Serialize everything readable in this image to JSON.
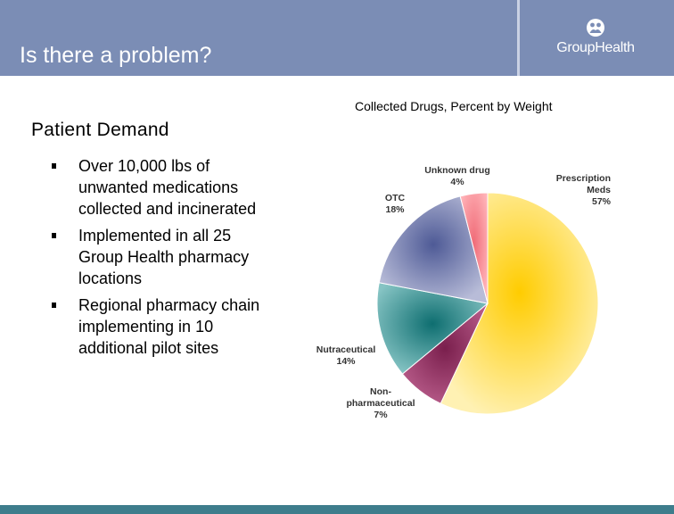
{
  "header": {
    "title": "Is there a problem?",
    "logo_text": "GroupHealth"
  },
  "content": {
    "heading": "Patient Demand",
    "bullets": [
      "Over 10,000 lbs of unwanted medications collected and incinerated",
      "Implemented in all 25 Group Health pharmacy locations",
      "Regional pharmacy chain implementing in 10 additional pilot sites"
    ]
  },
  "colors": {
    "header": "#7b8db5",
    "footer": "#3e7d8c"
  },
  "chart_data": {
    "type": "pie",
    "title": "Collected Drugs, Percent by Weight",
    "start_angle_deg": 0,
    "direction": "clockwise",
    "slices": [
      {
        "label_lines": [
          "Prescription",
          "Meds"
        ],
        "value_label": "57%",
        "value": 57,
        "colors": [
          "#ffcc00",
          "#fff1b3"
        ]
      },
      {
        "label_lines": [
          "Non-",
          "pharmaceutical"
        ],
        "value_label": "7%",
        "value": 7,
        "colors": [
          "#7a1f4d",
          "#b85c8a"
        ]
      },
      {
        "label_lines": [
          "Nutraceutical"
        ],
        "value_label": "14%",
        "value": 14,
        "colors": [
          "#0e6e70",
          "#86c4c4"
        ]
      },
      {
        "label_lines": [
          "OTC"
        ],
        "value_label": "18%",
        "value": 18,
        "colors": [
          "#4e5a96",
          "#b8bcd8"
        ]
      },
      {
        "label_lines": [
          "Unknown drug"
        ],
        "value_label": "4%",
        "value": 4,
        "colors": [
          "#f06c78",
          "#ffb3b8"
        ]
      }
    ]
  }
}
